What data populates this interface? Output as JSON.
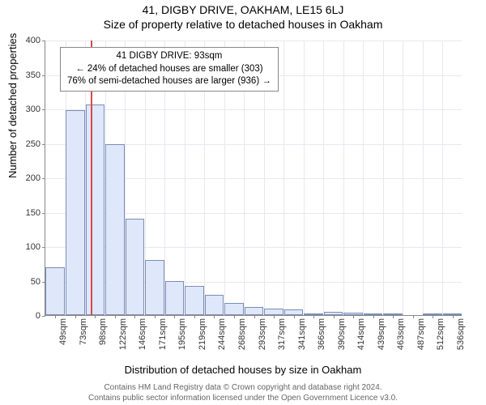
{
  "header": {
    "address": "41, DIGBY DRIVE, OAKHAM, LE15 6LJ",
    "subtitle": "Size of property relative to detached houses in Oakham"
  },
  "chart": {
    "type": "histogram",
    "ylabel": "Number of detached properties",
    "xlabel": "Distribution of detached houses by size in Oakham",
    "ylim": [
      0,
      400
    ],
    "ytick_step": 50,
    "grid_color": "#e8e8f0",
    "axis_color": "#888888",
    "bar_fill": "#dfe7fa",
    "bar_border": "#7a8db8",
    "background_color": "#ffffff",
    "reference_line": {
      "x_value": 93,
      "color": "#d94a4a"
    },
    "categories": [
      "49sqm",
      "73sqm",
      "98sqm",
      "122sqm",
      "146sqm",
      "171sqm",
      "195sqm",
      "219sqm",
      "244sqm",
      "268sqm",
      "293sqm",
      "317sqm",
      "341sqm",
      "366sqm",
      "390sqm",
      "414sqm",
      "439sqm",
      "463sqm",
      "487sqm",
      "512sqm",
      "536sqm"
    ],
    "values": [
      70,
      298,
      306,
      248,
      140,
      80,
      50,
      42,
      30,
      18,
      12,
      10,
      8,
      2,
      5,
      4,
      2,
      2,
      0,
      2,
      2
    ]
  },
  "annotation": {
    "line1": "41 DIGBY DRIVE: 93sqm",
    "line2": "← 24% of detached houses are smaller (303)",
    "line3": "76% of semi-detached houses are larger (936) →"
  },
  "footer": {
    "line1": "Contains HM Land Registry data © Crown copyright and database right 2024.",
    "line2": "Contains public sector information licensed under the Open Government Licence v3.0."
  }
}
